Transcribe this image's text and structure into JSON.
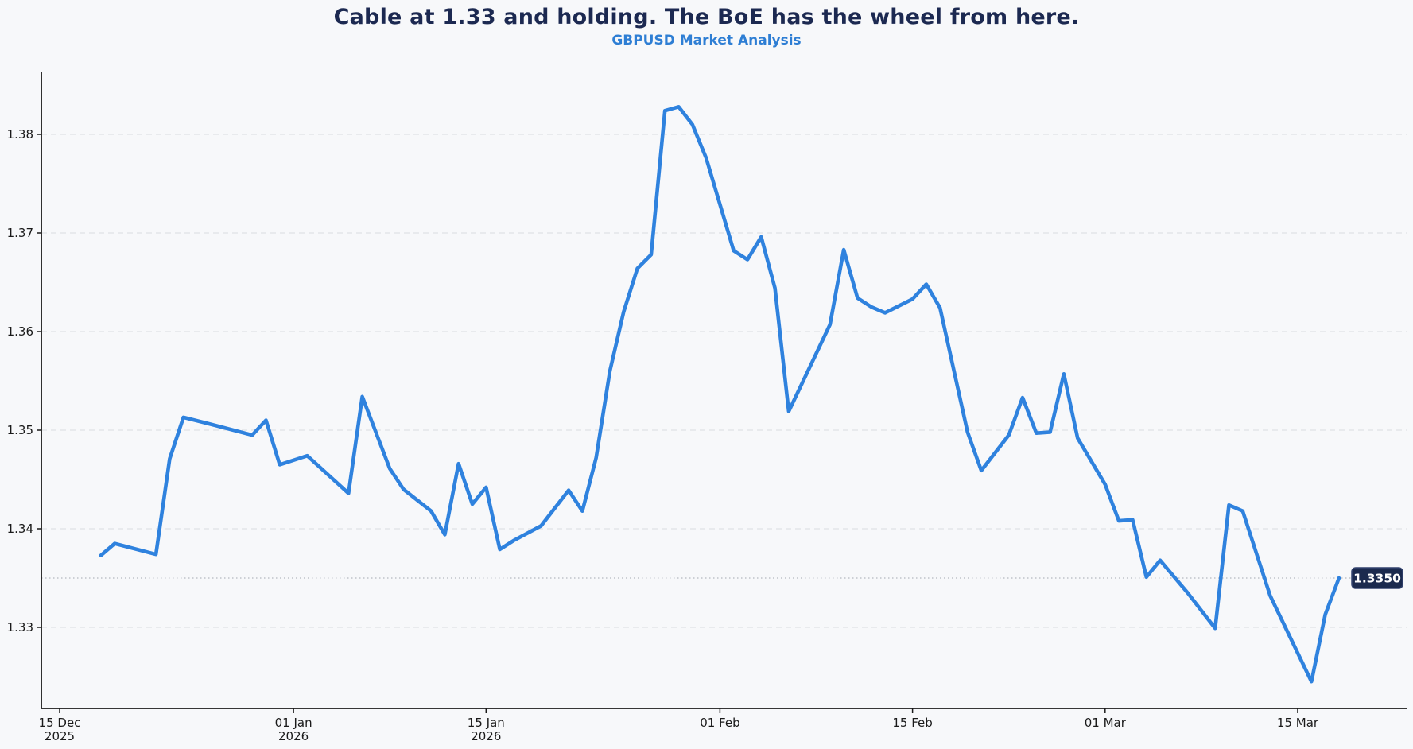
{
  "header": {
    "title": "Cable at 1.33 and holding. The BoE has the wheel from here.",
    "subtitle": "GBPUSD Market Analysis"
  },
  "colors": {
    "background": "#f7f8fa",
    "line": "#2f82de",
    "title_text": "#1c2951",
    "subtitle_text": "#2e7ed4",
    "axis_spine": "#1a1a1a",
    "tick_text": "#1a1a1a",
    "gridline": "#d9dbe0",
    "reference_line": "#b4b7bf",
    "price_label_bg": "#1b2a4e",
    "price_label_border": "#33436e",
    "price_label_text": "#ffffff"
  },
  "price_label": {
    "text": "1.3350",
    "value": 1.335
  },
  "chart_data": {
    "type": "line",
    "title": "Cable at 1.33 and holding. The BoE has the wheel from here.",
    "subtitle": "GBPUSD Market Analysis",
    "series_name": "GBPUSD",
    "grid": "horizontal-dashed",
    "legend_position": "none",
    "y_axis": {
      "range": [
        1.3218,
        1.3856
      ],
      "ticks": [
        {
          "value": 1.33,
          "label": "1.33"
        },
        {
          "value": 1.34,
          "label": "1.34"
        },
        {
          "value": 1.35,
          "label": "1.35"
        },
        {
          "value": 1.36,
          "label": "1.36"
        },
        {
          "value": 1.37,
          "label": "1.37"
        },
        {
          "value": 1.38,
          "label": "1.38"
        }
      ]
    },
    "x_axis": {
      "range": [
        "2025-12-14",
        "2026-03-23"
      ],
      "ticks": [
        {
          "date": "2025-12-15",
          "label_line1": "15 Dec",
          "label_line2": "2025"
        },
        {
          "date": "2026-01-01",
          "label_line1": "01 Jan",
          "label_line2": "2026"
        },
        {
          "date": "2026-01-15",
          "label_line1": "15 Jan",
          "label_line2": "2026"
        },
        {
          "date": "2026-02-01",
          "label_line1": "01 Feb",
          "label_line2": ""
        },
        {
          "date": "2026-02-15",
          "label_line1": "15 Feb",
          "label_line2": ""
        },
        {
          "date": "2026-03-01",
          "label_line1": "01 Mar",
          "label_line2": ""
        },
        {
          "date": "2026-03-15",
          "label_line1": "15 Mar",
          "label_line2": ""
        }
      ]
    },
    "reference_line": {
      "value": 1.335,
      "label": "1.3350",
      "style": "dotted"
    },
    "points": [
      {
        "date": "2025-12-18",
        "value": 1.3373
      },
      {
        "date": "2025-12-19",
        "value": 1.3385
      },
      {
        "date": "2025-12-22",
        "value": 1.3374
      },
      {
        "date": "2025-12-23",
        "value": 1.3471
      },
      {
        "date": "2025-12-24",
        "value": 1.3513
      },
      {
        "date": "2025-12-26",
        "value": 1.3506
      },
      {
        "date": "2025-12-29",
        "value": 1.3495
      },
      {
        "date": "2025-12-30",
        "value": 1.351
      },
      {
        "date": "2025-12-31",
        "value": 1.3465
      },
      {
        "date": "2026-01-02",
        "value": 1.3474
      },
      {
        "date": "2026-01-05",
        "value": 1.3436
      },
      {
        "date": "2026-01-06",
        "value": 1.3534
      },
      {
        "date": "2026-01-08",
        "value": 1.3461
      },
      {
        "date": "2026-01-09",
        "value": 1.344
      },
      {
        "date": "2026-01-11",
        "value": 1.3418
      },
      {
        "date": "2026-01-12",
        "value": 1.3394
      },
      {
        "date": "2026-01-13",
        "value": 1.3466
      },
      {
        "date": "2026-01-14",
        "value": 1.3425
      },
      {
        "date": "2026-01-15",
        "value": 1.3442
      },
      {
        "date": "2026-01-16",
        "value": 1.3379
      },
      {
        "date": "2026-01-17",
        "value": 1.3388
      },
      {
        "date": "2026-01-19",
        "value": 1.3403
      },
      {
        "date": "2026-01-21",
        "value": 1.3439
      },
      {
        "date": "2026-01-22",
        "value": 1.3418
      },
      {
        "date": "2026-01-23",
        "value": 1.3472
      },
      {
        "date": "2026-01-24",
        "value": 1.356
      },
      {
        "date": "2026-01-25",
        "value": 1.362
      },
      {
        "date": "2026-01-26",
        "value": 1.3664
      },
      {
        "date": "2026-01-27",
        "value": 1.3678
      },
      {
        "date": "2026-01-28",
        "value": 1.3824
      },
      {
        "date": "2026-01-29",
        "value": 1.3828
      },
      {
        "date": "2026-01-30",
        "value": 1.381
      },
      {
        "date": "2026-01-31",
        "value": 1.3776
      },
      {
        "date": "2026-02-02",
        "value": 1.3682
      },
      {
        "date": "2026-02-03",
        "value": 1.3673
      },
      {
        "date": "2026-02-04",
        "value": 1.3696
      },
      {
        "date": "2026-02-05",
        "value": 1.3644
      },
      {
        "date": "2026-02-06",
        "value": 1.3519
      },
      {
        "date": "2026-02-09",
        "value": 1.3607
      },
      {
        "date": "2026-02-10",
        "value": 1.3683
      },
      {
        "date": "2026-02-11",
        "value": 1.3634
      },
      {
        "date": "2026-02-12",
        "value": 1.3625
      },
      {
        "date": "2026-02-13",
        "value": 1.3619
      },
      {
        "date": "2026-02-15",
        "value": 1.3633
      },
      {
        "date": "2026-02-16",
        "value": 1.3648
      },
      {
        "date": "2026-02-17",
        "value": 1.3624
      },
      {
        "date": "2026-02-19",
        "value": 1.3498
      },
      {
        "date": "2026-02-20",
        "value": 1.3459
      },
      {
        "date": "2026-02-22",
        "value": 1.3495
      },
      {
        "date": "2026-02-23",
        "value": 1.3533
      },
      {
        "date": "2026-02-24",
        "value": 1.3497
      },
      {
        "date": "2026-02-25",
        "value": 1.3498
      },
      {
        "date": "2026-02-26",
        "value": 1.3557
      },
      {
        "date": "2026-02-27",
        "value": 1.3492
      },
      {
        "date": "2026-03-01",
        "value": 1.3445
      },
      {
        "date": "2026-03-02",
        "value": 1.3408
      },
      {
        "date": "2026-03-03",
        "value": 1.3409
      },
      {
        "date": "2026-03-04",
        "value": 1.3351
      },
      {
        "date": "2026-03-05",
        "value": 1.3368
      },
      {
        "date": "2026-03-07",
        "value": 1.3335
      },
      {
        "date": "2026-03-09",
        "value": 1.3299
      },
      {
        "date": "2026-03-10",
        "value": 1.3424
      },
      {
        "date": "2026-03-11",
        "value": 1.3418
      },
      {
        "date": "2026-03-13",
        "value": 1.3332
      },
      {
        "date": "2026-03-16",
        "value": 1.3245
      },
      {
        "date": "2026-03-17",
        "value": 1.3313
      },
      {
        "date": "2026-03-18",
        "value": 1.335
      }
    ]
  }
}
